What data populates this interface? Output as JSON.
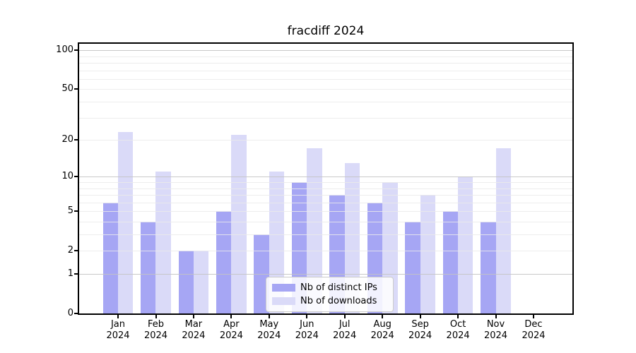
{
  "chart_data": {
    "type": "bar",
    "title": "fracdiff 2024",
    "scale": "log1p",
    "grid": true,
    "categories": [
      "Jan 2024",
      "Feb 2024",
      "Mar 2024",
      "Apr 2024",
      "May 2024",
      "Jun 2024",
      "Jul 2024",
      "Aug 2024",
      "Sep 2024",
      "Oct 2024",
      "Nov 2024",
      "Dec 2024"
    ],
    "series": [
      {
        "name": "Nb of distinct IPs",
        "color": "#a6a6f4",
        "values": [
          6,
          4,
          2,
          5,
          3,
          9,
          7,
          6,
          4,
          5,
          4,
          0
        ]
      },
      {
        "name": "Nb of downloads",
        "color": "#dadaf8",
        "values": [
          23,
          11,
          2,
          22,
          11,
          17,
          13,
          9,
          7,
          10,
          17,
          0
        ]
      }
    ],
    "y_axis": {
      "tick_values": [
        100,
        50,
        20,
        10,
        5,
        2,
        1,
        0
      ],
      "major_grid": [
        1,
        10,
        100
      ],
      "minor_grid": [
        2,
        3,
        4,
        5,
        6,
        7,
        8,
        9,
        20,
        30,
        40,
        50,
        60,
        70,
        80,
        90
      ],
      "ylim": [
        0,
        112
      ]
    },
    "legend": {
      "position": "lower center",
      "entries": [
        "Nb of distinct IPs",
        "Nb of downloads"
      ]
    },
    "colors": {
      "major_grid": "#c3c3c3",
      "minor_grid": "#eaeaea",
      "spine": "#000000",
      "legend_border": "#cccccc"
    }
  }
}
